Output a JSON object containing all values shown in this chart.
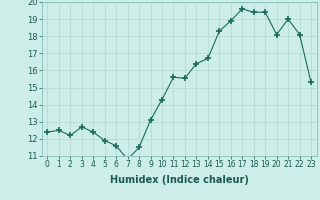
{
  "x": [
    0,
    1,
    2,
    3,
    4,
    5,
    6,
    7,
    8,
    9,
    10,
    11,
    12,
    13,
    14,
    15,
    16,
    17,
    18,
    19,
    20,
    21,
    22,
    23
  ],
  "y": [
    12.4,
    12.5,
    12.2,
    12.7,
    12.4,
    11.9,
    11.6,
    10.8,
    11.5,
    13.1,
    14.3,
    15.6,
    15.55,
    16.4,
    16.7,
    18.3,
    18.9,
    19.6,
    19.4,
    19.4,
    18.1,
    19.0,
    18.1,
    15.3
  ],
  "xlabel": "Humidex (Indice chaleur)",
  "ylim": [
    11,
    20
  ],
  "xlim": [
    -0.5,
    23.5
  ],
  "yticks": [
    11,
    12,
    13,
    14,
    15,
    16,
    17,
    18,
    19,
    20
  ],
  "xticks": [
    0,
    1,
    2,
    3,
    4,
    5,
    6,
    7,
    8,
    9,
    10,
    11,
    12,
    13,
    14,
    15,
    16,
    17,
    18,
    19,
    20,
    21,
    22,
    23
  ],
  "line_color": "#1a6b5a",
  "marker_color": "#1a6b5a",
  "bg_color": "#cdeee8",
  "grid_color": "#b0d8d0"
}
